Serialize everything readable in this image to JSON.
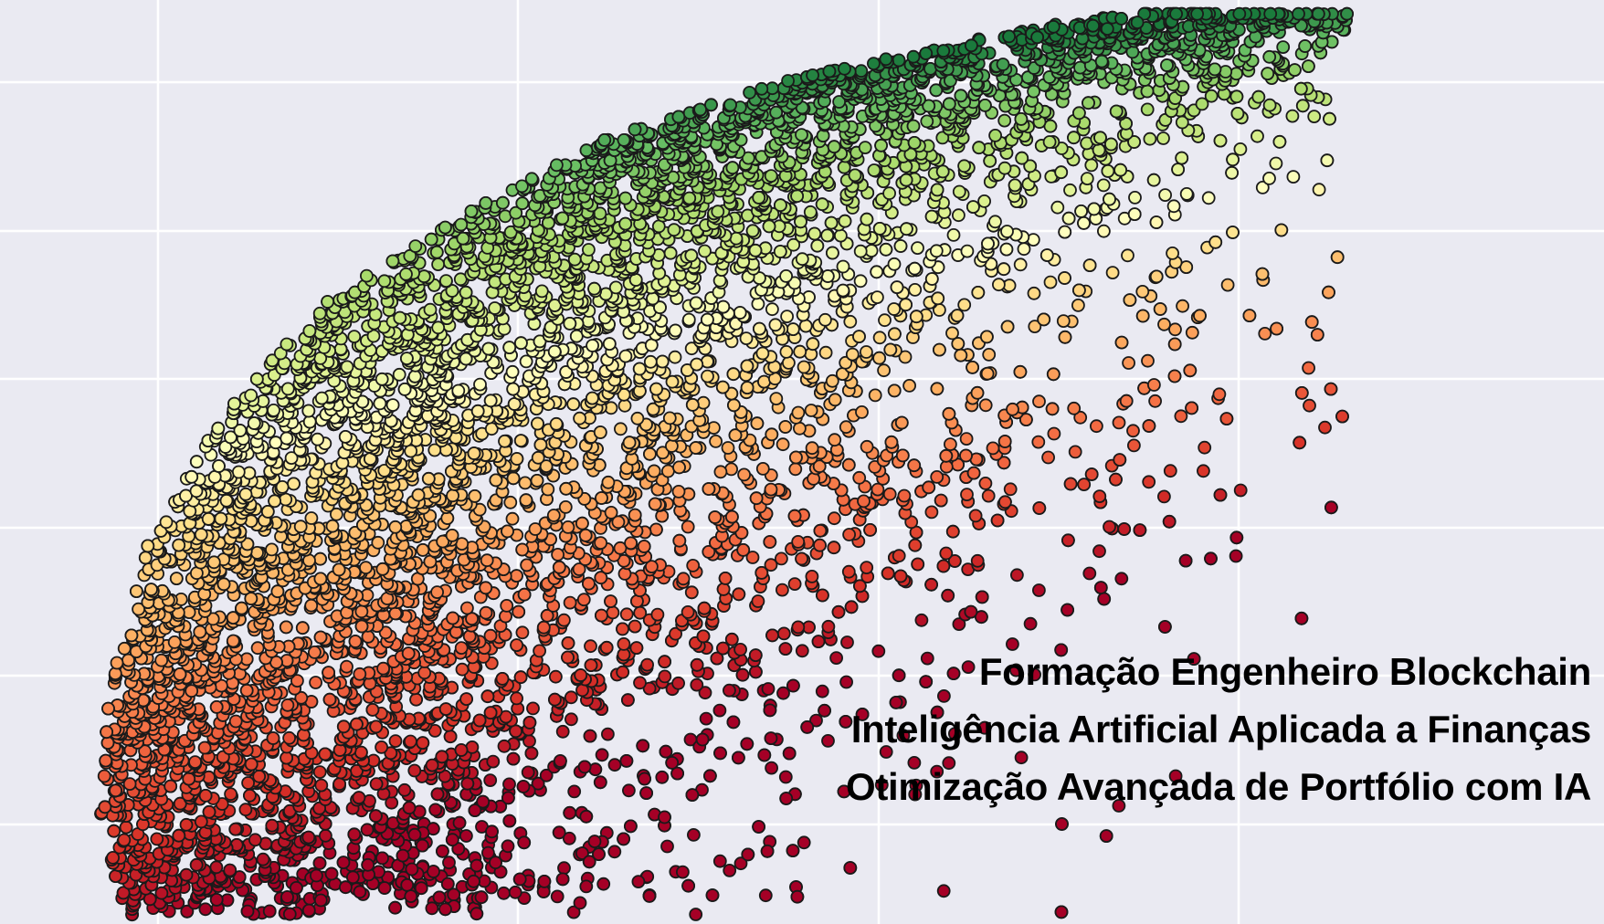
{
  "caption": {
    "line1": "Formação Engenheiro Blockchain",
    "line2": "Inteligência Artificial Aplicada a Finanças",
    "line3": "Otimização Avançada de Portfólio com IA"
  },
  "colors": {
    "background": "#eaeaf2",
    "grid": "#ffffff",
    "marker_edge": "#1a1a1a",
    "colormap_low": "#c0392b",
    "colormap_mid": "#ffffbf",
    "colormap_high": "#1a7a3c"
  },
  "chart_data": {
    "type": "scatter",
    "title": "",
    "xlabel": "",
    "ylabel": "",
    "grid": true,
    "legend": "none",
    "colormap": "RdYlGn",
    "color_by": "sharpe ratio (implied)",
    "xlim": [
      0.0,
      1.0
    ],
    "ylim": [
      0.0,
      1.0
    ],
    "point_count": 9000,
    "envelope": {
      "description": "efficient-frontier cloud of random portfolios",
      "frontier_points": [
        {
          "x": 0.06,
          "y": 0.02
        },
        {
          "x": 0.045,
          "y": 0.12
        },
        {
          "x": 0.05,
          "y": 0.25
        },
        {
          "x": 0.08,
          "y": 0.42
        },
        {
          "x": 0.13,
          "y": 0.55
        },
        {
          "x": 0.2,
          "y": 0.67
        },
        {
          "x": 0.29,
          "y": 0.76
        },
        {
          "x": 0.4,
          "y": 0.85
        },
        {
          "x": 0.52,
          "y": 0.91
        },
        {
          "x": 0.66,
          "y": 0.96
        },
        {
          "x": 0.8,
          "y": 0.995
        },
        {
          "x": 0.9,
          "y": 1.0
        }
      ]
    },
    "sample_points": [
      {
        "x": 0.06,
        "y": 0.03,
        "sharpe": 0.02
      },
      {
        "x": 0.1,
        "y": 0.15,
        "sharpe": 0.2
      },
      {
        "x": 0.07,
        "y": 0.3,
        "sharpe": 0.45
      },
      {
        "x": 0.12,
        "y": 0.45,
        "sharpe": 0.62
      },
      {
        "x": 0.2,
        "y": 0.6,
        "sharpe": 0.75
      },
      {
        "x": 0.3,
        "y": 0.7,
        "sharpe": 0.82
      },
      {
        "x": 0.45,
        "y": 0.8,
        "sharpe": 0.85
      },
      {
        "x": 0.6,
        "y": 0.9,
        "sharpe": 0.88
      },
      {
        "x": 0.75,
        "y": 0.95,
        "sharpe": 0.9
      },
      {
        "x": 0.9,
        "y": 0.99,
        "sharpe": 0.91
      },
      {
        "x": 0.35,
        "y": 0.1,
        "sharpe": 0.05
      },
      {
        "x": 0.5,
        "y": 0.4,
        "sharpe": 0.35
      },
      {
        "x": 0.65,
        "y": 0.7,
        "sharpe": 0.6
      }
    ]
  }
}
